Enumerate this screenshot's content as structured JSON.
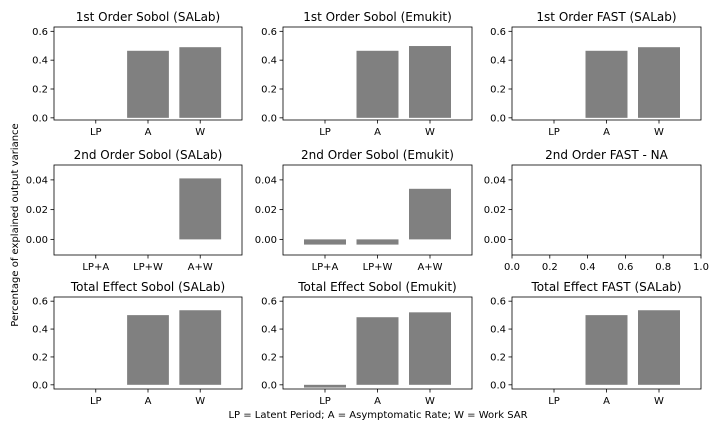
{
  "figure": {
    "ylabel": "Percentage of explained output variance",
    "xlabel": "LP = Latent Period; A = Asymptomatic Rate; W = Work SAR"
  },
  "colors": {
    "bar": "#808080",
    "axis": "#000000",
    "background": "#ffffff"
  },
  "chart_data": [
    {
      "type": "bar",
      "title": "1st Order Sobol (SALab)",
      "categories": [
        "LP",
        "A",
        "W"
      ],
      "values": [
        0.0,
        0.465,
        0.49
      ],
      "ylim": [
        -0.015,
        0.63
      ],
      "yticks": [
        "0.0",
        "0.2",
        "0.4",
        "0.6"
      ],
      "ytick_values": [
        0,
        0.2,
        0.4,
        0.6
      ]
    },
    {
      "type": "bar",
      "title": "1st Order Sobol (Emukit)",
      "categories": [
        "LP",
        "A",
        "W"
      ],
      "values": [
        0.0,
        0.465,
        0.498
      ],
      "ylim": [
        -0.015,
        0.63
      ],
      "yticks": [
        "0.0",
        "0.2",
        "0.4",
        "0.6"
      ],
      "ytick_values": [
        0,
        0.2,
        0.4,
        0.6
      ]
    },
    {
      "type": "bar",
      "title": "1st Order FAST (SALab)",
      "categories": [
        "LP",
        "A",
        "W"
      ],
      "values": [
        0.0,
        0.465,
        0.49
      ],
      "ylim": [
        -0.015,
        0.63
      ],
      "yticks": [
        "0.0",
        "0.2",
        "0.4",
        "0.6"
      ],
      "ytick_values": [
        0,
        0.2,
        0.4,
        0.6
      ]
    },
    {
      "type": "bar",
      "title": "2nd Order Sobol (SALab)",
      "categories": [
        "LP+A",
        "LP+W",
        "A+W"
      ],
      "values": [
        0.0,
        0.0,
        0.041
      ],
      "ylim": [
        -0.0105,
        0.05
      ],
      "yticks": [
        "0.00",
        "0.02",
        "0.04"
      ],
      "ytick_values": [
        0,
        0.02,
        0.04
      ]
    },
    {
      "type": "bar",
      "title": "2nd Order Sobol (Emukit)",
      "categories": [
        "LP+A",
        "LP+W",
        "A+W"
      ],
      "values": [
        -0.0035,
        -0.0035,
        0.034
      ],
      "ylim": [
        -0.0105,
        0.05
      ],
      "yticks": [
        "0.00",
        "0.02",
        "0.04"
      ],
      "ytick_values": [
        0,
        0.02,
        0.04
      ]
    },
    {
      "type": "bar",
      "title": "2nd Order FAST - NA",
      "categories": [],
      "values": [],
      "ylim": [
        -0.0105,
        0.05
      ],
      "yticks": [
        "0.00",
        "0.02",
        "0.04"
      ],
      "ytick_values": [
        0,
        0.02,
        0.04
      ],
      "xlim": [
        0.0,
        1.0
      ],
      "xticks": [
        "0.0",
        "0.2",
        "0.4",
        "0.6",
        "0.8",
        "1.0"
      ],
      "xtick_values": [
        0,
        0.2,
        0.4,
        0.6,
        0.8,
        1.0
      ]
    },
    {
      "type": "bar",
      "title": "Total Effect Sobol (SALab)",
      "categories": [
        "LP",
        "A",
        "W"
      ],
      "values": [
        0.0,
        0.5,
        0.535
      ],
      "ylim": [
        -0.03,
        0.63
      ],
      "yticks": [
        "0.0",
        "0.2",
        "0.4",
        "0.6"
      ],
      "ytick_values": [
        0,
        0.2,
        0.4,
        0.6
      ]
    },
    {
      "type": "bar",
      "title": "Total Effect Sobol (Emukit)",
      "categories": [
        "LP",
        "A",
        "W"
      ],
      "values": [
        -0.02,
        0.485,
        0.52
      ],
      "ylim": [
        -0.03,
        0.63
      ],
      "yticks": [
        "0.0",
        "0.2",
        "0.4",
        "0.6"
      ],
      "ytick_values": [
        0,
        0.2,
        0.4,
        0.6
      ]
    },
    {
      "type": "bar",
      "title": "Total Effect FAST (SALab)",
      "categories": [
        "LP",
        "A",
        "W"
      ],
      "values": [
        0.0,
        0.5,
        0.535
      ],
      "ylim": [
        -0.03,
        0.63
      ],
      "yticks": [
        "0.0",
        "0.2",
        "0.4",
        "0.6"
      ],
      "ytick_values": [
        0,
        0.2,
        0.4,
        0.6
      ]
    }
  ]
}
